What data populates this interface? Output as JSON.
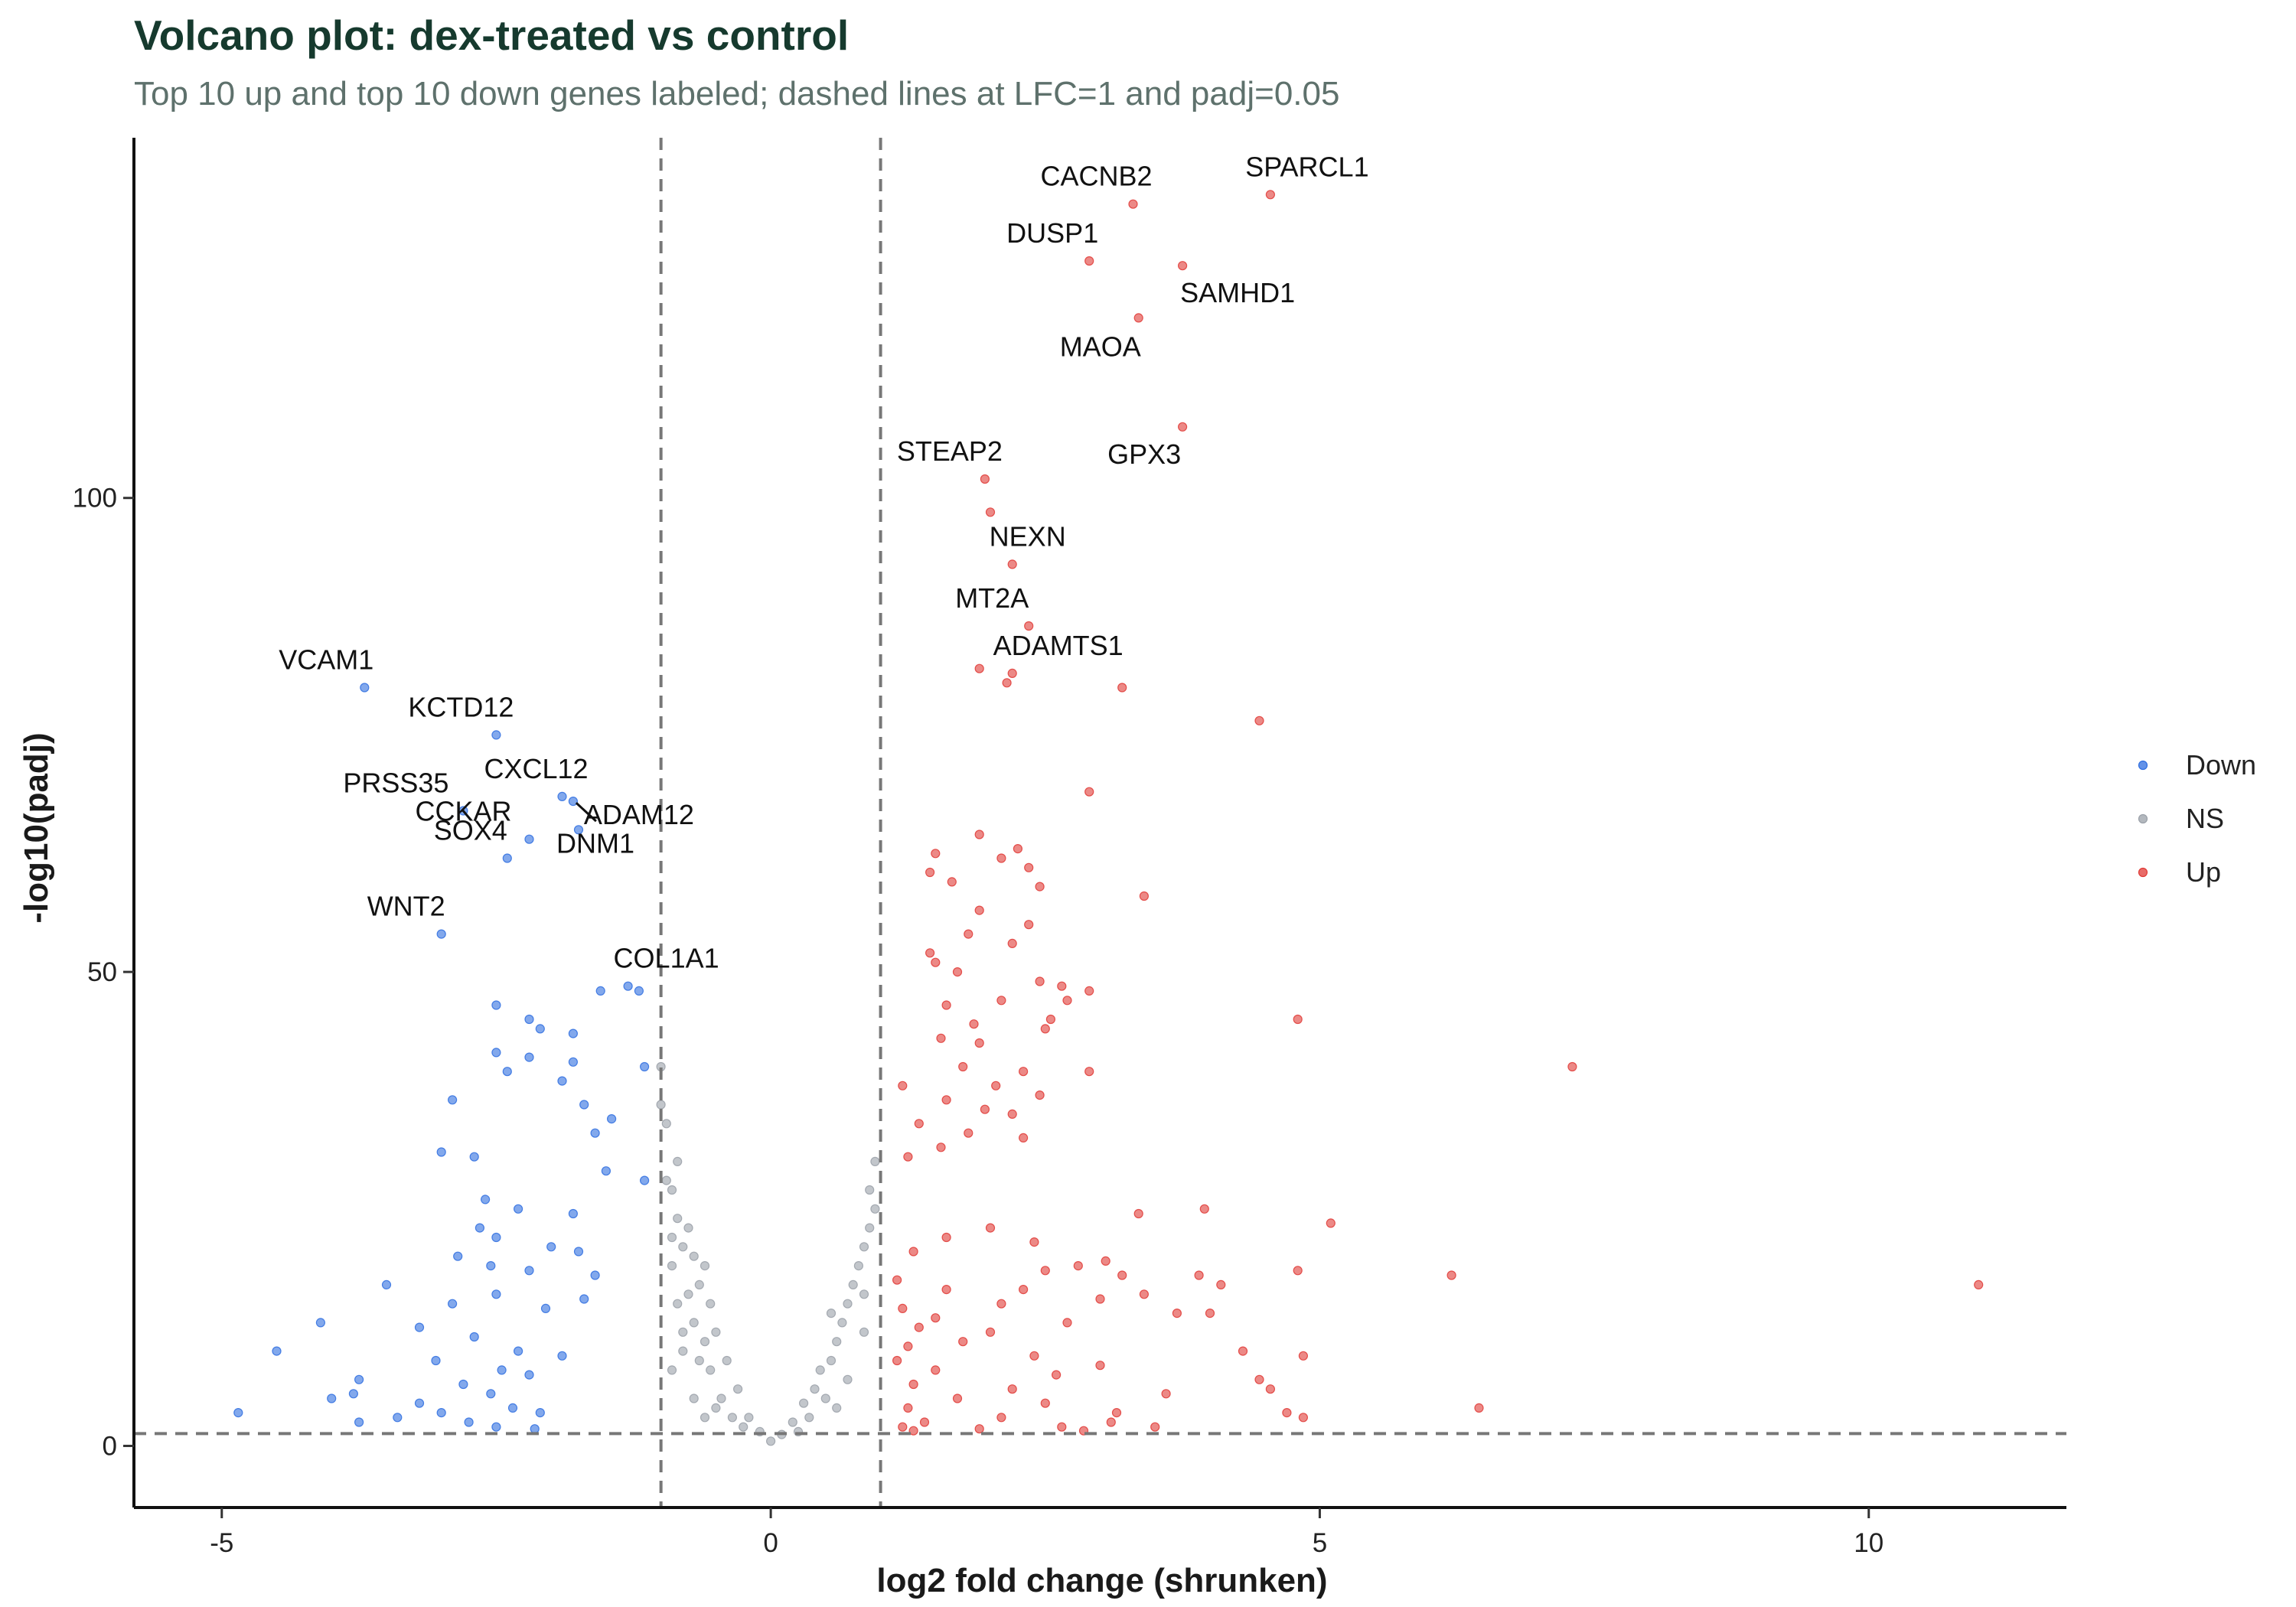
{
  "title": "Volcano plot: dex-treated vs control",
  "subtitle": "Top 10 up and top 10 down genes labeled; dashed lines at LFC=1 and padj=0.05",
  "chart_data": {
    "type": "scatter",
    "xlabel": "log2 fold change (shrunken)",
    "ylabel": "-log10(padj)",
    "xlim": [
      -5.8,
      11.8
    ],
    "ylim": [
      -6.5,
      138
    ],
    "x_ticks": [
      -5,
      0,
      5,
      10
    ],
    "y_ticks": [
      0,
      50,
      100
    ],
    "grid": false,
    "legend_position": "right",
    "thresholds": {
      "lfc": 1,
      "padj_neglog10": 1.3
    },
    "colors": {
      "Down": "#2f6ee0",
      "NS": "#9aa0a8",
      "Up": "#e03a36",
      "threshold_line": "#777777"
    },
    "series": [
      {
        "name": "Down",
        "points": [
          [
            -3.7,
            80
          ],
          [
            -2.5,
            75
          ],
          [
            -1.9,
            68.5
          ],
          [
            -1.8,
            68
          ],
          [
            -2.8,
            67
          ],
          [
            -1.75,
            65
          ],
          [
            -2.2,
            64
          ],
          [
            -2.4,
            62
          ],
          [
            -3.0,
            54
          ],
          [
            -1.3,
            48.5
          ],
          [
            -1.2,
            48
          ],
          [
            -1.55,
            48
          ],
          [
            -2.5,
            46.5
          ],
          [
            -2.2,
            45
          ],
          [
            -2.1,
            44
          ],
          [
            -1.8,
            43.5
          ],
          [
            -2.5,
            41.5
          ],
          [
            -2.2,
            41
          ],
          [
            -1.8,
            40.5
          ],
          [
            -1.15,
            40
          ],
          [
            -2.4,
            39.5
          ],
          [
            -1.9,
            38.5
          ],
          [
            -2.9,
            36.5
          ],
          [
            -1.7,
            36
          ],
          [
            -1.45,
            34.5
          ],
          [
            -1.6,
            33
          ],
          [
            -3.0,
            31
          ],
          [
            -2.7,
            30.5
          ],
          [
            -1.5,
            29
          ],
          [
            -1.15,
            28
          ],
          [
            -2.6,
            26
          ],
          [
            -2.3,
            25
          ],
          [
            -1.8,
            24.5
          ],
          [
            -2.65,
            23
          ],
          [
            -2.5,
            22
          ],
          [
            -2.0,
            21
          ],
          [
            -1.75,
            20.5
          ],
          [
            -2.85,
            20
          ],
          [
            -2.55,
            19
          ],
          [
            -2.2,
            18.5
          ],
          [
            -1.6,
            18
          ],
          [
            -3.5,
            17
          ],
          [
            -2.9,
            15
          ],
          [
            -2.5,
            16
          ],
          [
            -2.05,
            14.5
          ],
          [
            -1.7,
            15.5
          ],
          [
            -4.1,
            13
          ],
          [
            -3.2,
            12.5
          ],
          [
            -2.7,
            11.5
          ],
          [
            -2.3,
            10
          ],
          [
            -1.9,
            9.5
          ],
          [
            -4.5,
            10
          ],
          [
            -3.05,
            9
          ],
          [
            -2.45,
            8
          ],
          [
            -2.2,
            7.5
          ],
          [
            -3.75,
            7
          ],
          [
            -2.8,
            6.5
          ],
          [
            -2.55,
            5.5
          ],
          [
            -3.8,
            5.5
          ],
          [
            -4.0,
            5
          ],
          [
            -3.2,
            4.5
          ],
          [
            -2.35,
            4
          ],
          [
            -2.1,
            3.5
          ],
          [
            -4.85,
            3.5
          ],
          [
            -3.4,
            3
          ],
          [
            -3.75,
            2.5
          ],
          [
            -2.75,
            2.5
          ],
          [
            -2.5,
            2
          ],
          [
            -2.15,
            1.8
          ],
          [
            -3.0,
            3.5
          ]
        ]
      },
      {
        "name": "Up",
        "points": [
          [
            4.55,
            132
          ],
          [
            3.3,
            131
          ],
          [
            2.9,
            125
          ],
          [
            3.75,
            124.5
          ],
          [
            3.35,
            119
          ],
          [
            3.75,
            107.5
          ],
          [
            1.95,
            102
          ],
          [
            2.0,
            98.5
          ],
          [
            2.2,
            93
          ],
          [
            2.35,
            86.5
          ],
          [
            1.9,
            82
          ],
          [
            2.2,
            81.5
          ],
          [
            2.15,
            80.5
          ],
          [
            3.2,
            80
          ],
          [
            4.45,
            76.5
          ],
          [
            2.9,
            69
          ],
          [
            1.9,
            64.5
          ],
          [
            2.25,
            63
          ],
          [
            1.5,
            62.5
          ],
          [
            2.1,
            62
          ],
          [
            2.35,
            61
          ],
          [
            1.45,
            60.5
          ],
          [
            1.65,
            59.5
          ],
          [
            2.45,
            59
          ],
          [
            3.4,
            58
          ],
          [
            1.9,
            56.5
          ],
          [
            2.35,
            55
          ],
          [
            1.8,
            54
          ],
          [
            2.2,
            53
          ],
          [
            1.45,
            52
          ],
          [
            1.5,
            51
          ],
          [
            1.7,
            50
          ],
          [
            2.45,
            49
          ],
          [
            2.65,
            48.5
          ],
          [
            2.9,
            48
          ],
          [
            2.1,
            47
          ],
          [
            2.7,
            47
          ],
          [
            1.6,
            46.5
          ],
          [
            4.8,
            45
          ],
          [
            2.55,
            45
          ],
          [
            1.85,
            44.5
          ],
          [
            2.5,
            44
          ],
          [
            1.55,
            43
          ],
          [
            1.9,
            42.5
          ],
          [
            7.3,
            40
          ],
          [
            1.75,
            40
          ],
          [
            2.3,
            39.5
          ],
          [
            2.05,
            38
          ],
          [
            2.9,
            39.5
          ],
          [
            1.2,
            38
          ],
          [
            2.45,
            37
          ],
          [
            1.6,
            36.5
          ],
          [
            1.95,
            35.5
          ],
          [
            2.2,
            35
          ],
          [
            1.35,
            34
          ],
          [
            1.8,
            33
          ],
          [
            2.3,
            32.5
          ],
          [
            1.55,
            31.5
          ],
          [
            1.25,
            30.5
          ],
          [
            3.35,
            24.5
          ],
          [
            3.95,
            25
          ],
          [
            5.1,
            23.5
          ],
          [
            2.0,
            23
          ],
          [
            1.6,
            22
          ],
          [
            2.4,
            21.5
          ],
          [
            1.3,
            20.5
          ],
          [
            3.05,
            19.5
          ],
          [
            2.8,
            19
          ],
          [
            2.5,
            18.5
          ],
          [
            3.9,
            18
          ],
          [
            4.8,
            18.5
          ],
          [
            3.2,
            18
          ],
          [
            6.2,
            18
          ],
          [
            1.15,
            17.5
          ],
          [
            4.1,
            17
          ],
          [
            11.0,
            17
          ],
          [
            1.6,
            16.5
          ],
          [
            2.3,
            16.5
          ],
          [
            3.4,
            16
          ],
          [
            3.0,
            15.5
          ],
          [
            2.1,
            15
          ],
          [
            1.2,
            14.5
          ],
          [
            3.7,
            14
          ],
          [
            1.5,
            13.5
          ],
          [
            4.0,
            14
          ],
          [
            2.7,
            13
          ],
          [
            1.35,
            12.5
          ],
          [
            2.0,
            12
          ],
          [
            1.75,
            11
          ],
          [
            1.25,
            10.5
          ],
          [
            4.3,
            10
          ],
          [
            2.4,
            9.5
          ],
          [
            1.15,
            9
          ],
          [
            4.85,
            9.5
          ],
          [
            3.0,
            8.5
          ],
          [
            1.5,
            8
          ],
          [
            2.6,
            7.5
          ],
          [
            4.45,
            7
          ],
          [
            1.3,
            6.5
          ],
          [
            2.2,
            6
          ],
          [
            4.55,
            6
          ],
          [
            3.6,
            5.5
          ],
          [
            1.7,
            5
          ],
          [
            2.5,
            4.5
          ],
          [
            6.45,
            4
          ],
          [
            1.25,
            4
          ],
          [
            3.15,
            3.5
          ],
          [
            4.85,
            3
          ],
          [
            2.1,
            3
          ],
          [
            4.7,
            3.5
          ],
          [
            1.4,
            2.5
          ],
          [
            3.1,
            2.5
          ],
          [
            2.65,
            2
          ],
          [
            1.2,
            2
          ],
          [
            3.5,
            2
          ],
          [
            1.9,
            1.8
          ],
          [
            2.85,
            1.6
          ],
          [
            1.3,
            1.6
          ]
        ]
      },
      {
        "name": "NS",
        "points": [
          [
            -1.0,
            40
          ],
          [
            -1.0,
            36
          ],
          [
            -0.95,
            34
          ],
          [
            -0.85,
            30
          ],
          [
            -0.95,
            28
          ],
          [
            -0.9,
            27
          ],
          [
            -0.85,
            24
          ],
          [
            -0.75,
            23
          ],
          [
            -0.9,
            22
          ],
          [
            -0.8,
            21
          ],
          [
            -0.7,
            20
          ],
          [
            -0.6,
            19
          ],
          [
            -0.9,
            19
          ],
          [
            -0.65,
            17
          ],
          [
            -0.75,
            16
          ],
          [
            -0.85,
            15
          ],
          [
            -0.55,
            15
          ],
          [
            -0.7,
            13
          ],
          [
            -0.5,
            12
          ],
          [
            -0.6,
            11
          ],
          [
            -0.8,
            10
          ],
          [
            -0.4,
            9
          ],
          [
            -0.55,
            8
          ],
          [
            -0.9,
            8
          ],
          [
            -0.3,
            6
          ],
          [
            -0.45,
            5
          ],
          [
            -0.7,
            5
          ],
          [
            -0.2,
            3
          ],
          [
            -0.35,
            3
          ],
          [
            -0.6,
            3
          ],
          [
            -0.1,
            1.5
          ],
          [
            0.0,
            0.5
          ],
          [
            0.1,
            1.2
          ],
          [
            0.2,
            2.5
          ],
          [
            0.3,
            4.5
          ],
          [
            0.4,
            6
          ],
          [
            0.45,
            8
          ],
          [
            0.55,
            9
          ],
          [
            0.6,
            11
          ],
          [
            0.65,
            13
          ],
          [
            0.7,
            15
          ],
          [
            0.75,
            17
          ],
          [
            0.8,
            19
          ],
          [
            0.85,
            21
          ],
          [
            0.9,
            23
          ],
          [
            0.95,
            25
          ],
          [
            0.9,
            27
          ],
          [
            0.95,
            30
          ],
          [
            0.5,
            5
          ],
          [
            0.7,
            7
          ],
          [
            0.85,
            12
          ],
          [
            0.35,
            3
          ],
          [
            0.6,
            4
          ],
          [
            -0.25,
            2
          ],
          [
            -0.5,
            4
          ],
          [
            0.25,
            1.5
          ],
          [
            0.85,
            16
          ],
          [
            0.55,
            14
          ],
          [
            -0.65,
            9
          ],
          [
            -0.8,
            12
          ]
        ]
      }
    ],
    "labels": [
      {
        "gene": "SPARCL1",
        "x": 4.55,
        "y": 132
      },
      {
        "gene": "CACNB2",
        "x": 3.3,
        "y": 131
      },
      {
        "gene": "DUSP1",
        "x": 2.9,
        "y": 125
      },
      {
        "gene": "SAMHD1",
        "x": 3.75,
        "y": 124.5
      },
      {
        "gene": "MAOA",
        "x": 3.35,
        "y": 119
      },
      {
        "gene": "GPX3",
        "x": 3.75,
        "y": 107.5
      },
      {
        "gene": "STEAP2",
        "x": 1.95,
        "y": 102
      },
      {
        "gene": "NEXN",
        "x": 2.2,
        "y": 93
      },
      {
        "gene": "MT2A",
        "x": 2.35,
        "y": 86.5
      },
      {
        "gene": "ADAMTS1",
        "x": 2.2,
        "y": 81.5
      },
      {
        "gene": "VCAM1",
        "x": -3.7,
        "y": 80
      },
      {
        "gene": "KCTD12",
        "x": -2.5,
        "y": 75
      },
      {
        "gene": "CXCL12",
        "x": -1.9,
        "y": 68.5
      },
      {
        "gene": "ADAM12",
        "x": -1.8,
        "y": 68
      },
      {
        "gene": "PRSS35",
        "x": -2.8,
        "y": 67
      },
      {
        "gene": "CCKAR",
        "x": -2.2,
        "y": 64
      },
      {
        "gene": "DNM1",
        "x": -1.75,
        "y": 65
      },
      {
        "gene": "SOX4",
        "x": -2.4,
        "y": 62
      },
      {
        "gene": "WNT2",
        "x": -3.0,
        "y": 54
      },
      {
        "gene": "COL1A1",
        "x": -1.3,
        "y": 48.5
      }
    ],
    "legend": [
      "Down",
      "NS",
      "Up"
    ]
  }
}
